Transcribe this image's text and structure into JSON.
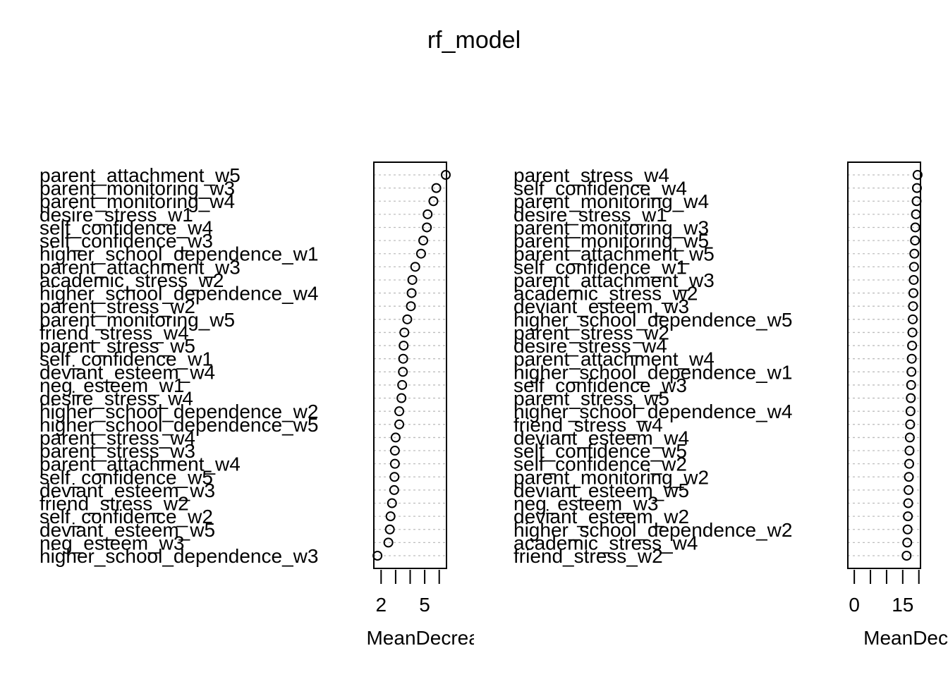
{
  "chart_data": {
    "type": "scatter",
    "title": "rf_model",
    "panels": [
      {
        "xlabel": "MeanDecreaseAccuracy",
        "xlim": [
          1.5,
          6.5
        ],
        "ticks": [
          2,
          3,
          4,
          5,
          6
        ],
        "tick_labels": [
          "2",
          "",
          "",
          "5",
          ""
        ],
        "variables": [
          "parent_attachment_w5",
          "parent_monitoring_w3",
          "parent_monitoring_w4",
          "desire_stress_w1",
          "self_confidence_w4",
          "self_confidence_w3",
          "higher_school_dependence_w1",
          "parent_attachment_w3",
          "academic_stress_w2",
          "higher_school_dependence_w4",
          "parent_stress_w2",
          "parent_monitoring_w5",
          "friend_stress_w4",
          "parent_stress_w5",
          "self_confidence_w1",
          "deviant_esteem_w4",
          "neg_esteem_w1",
          "desire_stress_w4",
          "higher_school_dependence_w2",
          "higher_school_dependence_w5",
          "parent_stress_w4",
          "parent_stress_w3",
          "parent_attachment_w4",
          "self_confidence_w5",
          "deviant_esteem_w3",
          "friend_stress_w2",
          "self_confidence_w2",
          "deviant_esteem_w5",
          "neg_esteem_w3",
          "higher_school_dependence_w3"
        ],
        "values": [
          6.45,
          5.8,
          5.6,
          5.2,
          5.15,
          4.9,
          4.75,
          4.35,
          4.15,
          4.1,
          4.05,
          3.8,
          3.6,
          3.55,
          3.52,
          3.5,
          3.45,
          3.4,
          3.25,
          3.25,
          3.0,
          2.95,
          2.95,
          2.92,
          2.9,
          2.75,
          2.65,
          2.6,
          2.5,
          1.75
        ]
      },
      {
        "xlabel": "MeanDecreaseGini",
        "xlim": [
          -2,
          20.5
        ],
        "ticks": [
          0,
          5,
          10,
          15,
          20
        ],
        "tick_labels": [
          "0",
          "",
          "",
          "15",
          ""
        ],
        "variables": [
          "parent_stress_w4",
          "self_confidence_w4",
          "parent_monitoring_w4",
          "desire_stress_w1",
          "parent_monitoring_w3",
          "parent_monitoring_w5",
          "parent_attachment_w5",
          "self_confidence_w1",
          "parent_attachment_w3",
          "academic_stress_w2",
          "deviant_esteem_w3",
          "higher_school_dependence_w5",
          "parent_stress_w2",
          "desire_stress_w4",
          "parent_attachment_w4",
          "higher_school_dependence_w1",
          "self_confidence_w3",
          "parent_stress_w5",
          "higher_school_dependence_w4",
          "friend_stress_w4",
          "deviant_esteem_w4",
          "self_confidence_w5",
          "self_confidence_w2",
          "parent_monitoring_w2",
          "deviant_esteem_w5",
          "neg_esteem_w3",
          "deviant_esteem_w2",
          "higher_school_dependence_w2",
          "academic_stress_w4",
          "friend_stress_w2"
        ],
        "values": [
          19.6,
          19.4,
          19.3,
          19.1,
          18.9,
          18.8,
          18.6,
          18.5,
          18.4,
          18.3,
          18.2,
          18.1,
          18.0,
          17.9,
          17.8,
          17.7,
          17.6,
          17.5,
          17.4,
          17.3,
          17.2,
          17.1,
          17.0,
          16.9,
          16.8,
          16.7,
          16.6,
          16.5,
          16.4,
          16.2
        ]
      }
    ]
  }
}
